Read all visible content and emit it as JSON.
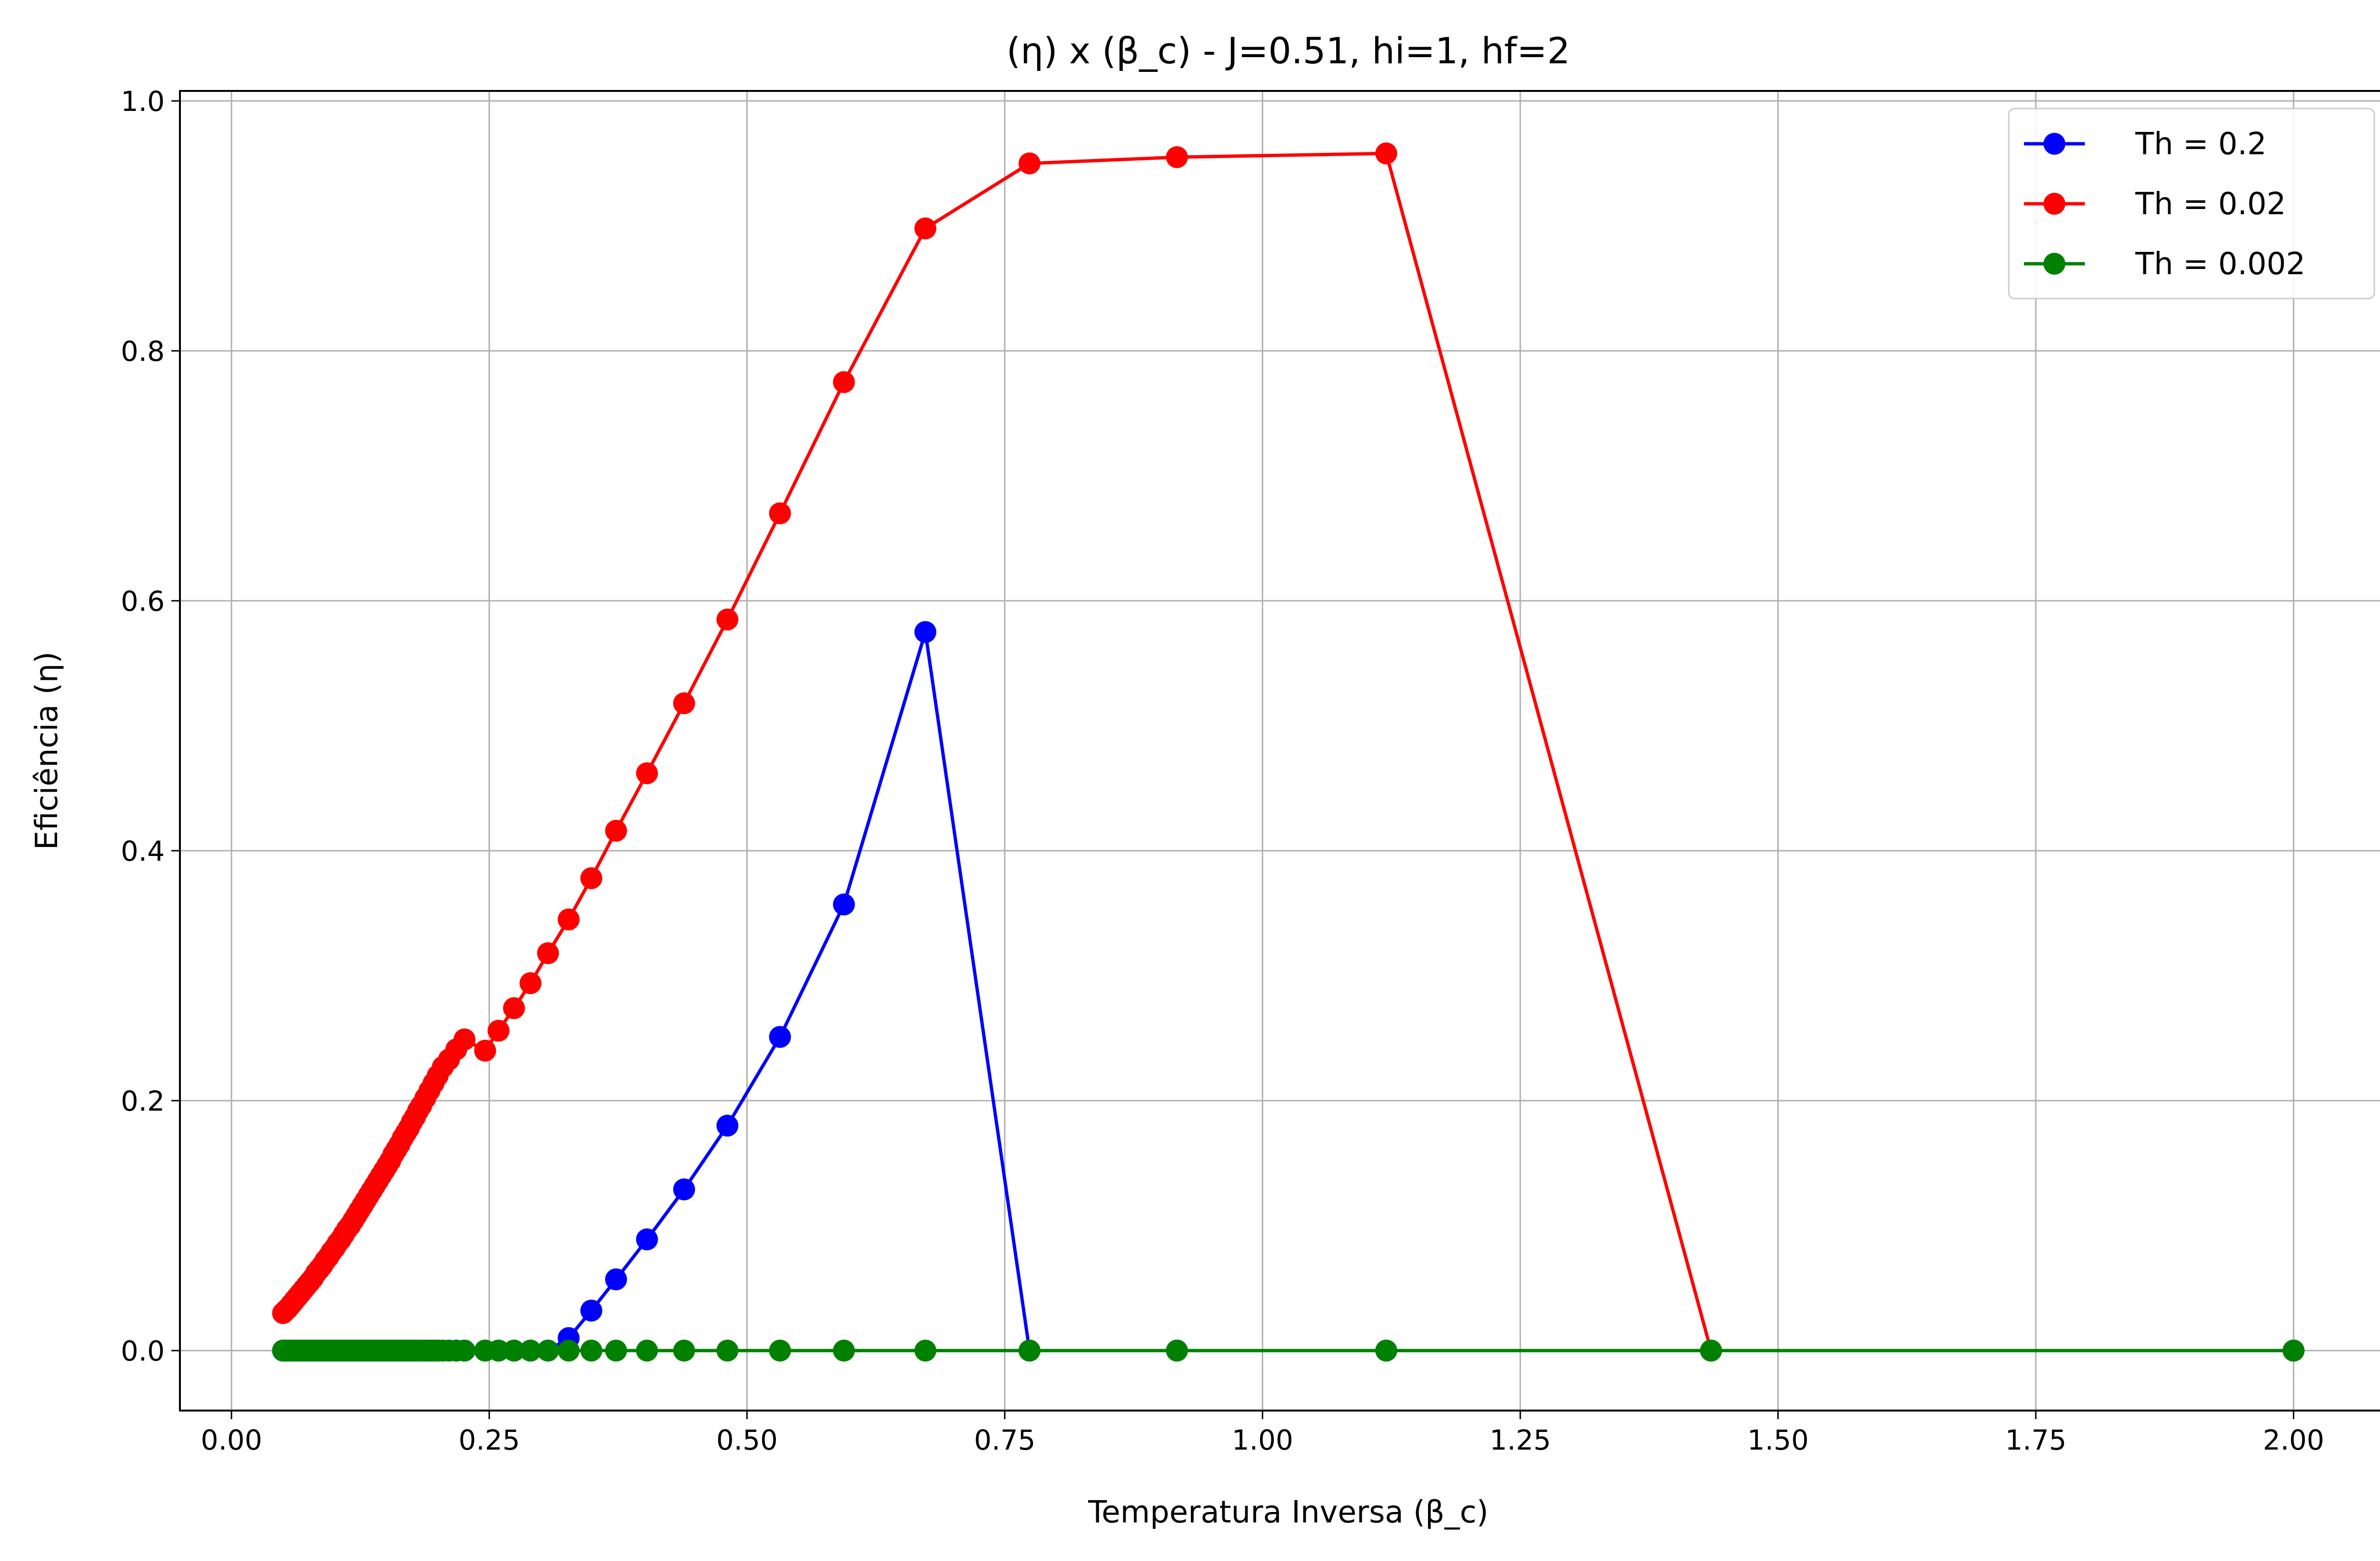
{
  "chart_data": {
    "type": "line",
    "title": "(η) x (β_c) - J=0.51, hi=1, hf=2",
    "xlabel": "Temperatura Inversa (β_c)",
    "ylabel": "Eficiência (η)",
    "xlim": [
      -0.05,
      2.1
    ],
    "ylim": [
      -0.048,
      1.008
    ],
    "xticks": [
      0.0,
      0.25,
      0.5,
      0.75,
      1.0,
      1.25,
      1.5,
      1.75,
      2.0
    ],
    "xtick_labels": [
      "0.00",
      "0.25",
      "0.50",
      "0.75",
      "1.00",
      "1.25",
      "1.50",
      "1.75",
      "2.00"
    ],
    "yticks": [
      0.0,
      0.2,
      0.4,
      0.6,
      0.8,
      1.0
    ],
    "ytick_labels": [
      "0.0",
      "0.2",
      "0.4",
      "0.6",
      "0.8",
      "1.0"
    ],
    "grid": true,
    "legend_position": "top-right",
    "x": [
      0.05,
      0.0525,
      0.055,
      0.058,
      0.061,
      0.064,
      0.067,
      0.07,
      0.073,
      0.076,
      0.079,
      0.082,
      0.085,
      0.088,
      0.091,
      0.094,
      0.097,
      0.1,
      0.103,
      0.106,
      0.109,
      0.112,
      0.115,
      0.118,
      0.121,
      0.124,
      0.127,
      0.13,
      0.133,
      0.136,
      0.139,
      0.142,
      0.145,
      0.148,
      0.151,
      0.154,
      0.157,
      0.16,
      0.163,
      0.166,
      0.169,
      0.172,
      0.175,
      0.178,
      0.181,
      0.184,
      0.188,
      0.192,
      0.196,
      0.2,
      0.205,
      0.211,
      0.218,
      0.226,
      0.246,
      0.259,
      0.274,
      0.29,
      0.307,
      0.327,
      0.349,
      0.373,
      0.403,
      0.439,
      0.481,
      0.532,
      0.594,
      0.673,
      0.774,
      0.917,
      1.12,
      1.435,
      2.0
    ],
    "series": [
      {
        "name": "Th = 0.2",
        "color": "#0000ff",
        "values": [
          0,
          0,
          0,
          0,
          0,
          0,
          0,
          0,
          0,
          0,
          0,
          0,
          0,
          0,
          0,
          0,
          0,
          0,
          0,
          0,
          0,
          0,
          0,
          0,
          0,
          0,
          0,
          0,
          0,
          0,
          0,
          0,
          0,
          0,
          0,
          0,
          0,
          0,
          0,
          0,
          0,
          0,
          0,
          0,
          0,
          0,
          0,
          0,
          0,
          0,
          0,
          0,
          0,
          0,
          0,
          0,
          0,
          0,
          0,
          0.01,
          0.032,
          0.057,
          0.089,
          0.129,
          0.18,
          0.251,
          0.357,
          0.575,
          0,
          0,
          0,
          0,
          0
        ]
      },
      {
        "name": "Th = 0.02",
        "color": "#ff0000",
        "values": [
          0.03,
          0.032,
          0.034,
          0.037,
          0.04,
          0.043,
          0.046,
          0.049,
          0.052,
          0.055,
          0.058,
          0.062,
          0.065,
          0.068,
          0.072,
          0.075,
          0.079,
          0.082,
          0.086,
          0.089,
          0.093,
          0.097,
          0.1,
          0.104,
          0.108,
          0.112,
          0.116,
          0.12,
          0.124,
          0.128,
          0.132,
          0.136,
          0.14,
          0.144,
          0.148,
          0.152,
          0.157,
          0.161,
          0.165,
          0.17,
          0.174,
          0.178,
          0.183,
          0.187,
          0.192,
          0.196,
          0.202,
          0.208,
          0.214,
          0.22,
          0.227,
          0.233,
          0.241,
          0.249,
          0.24,
          0.256,
          0.274,
          0.294,
          0.318,
          0.345,
          0.378,
          0.416,
          0.462,
          0.518,
          0.585,
          0.67,
          0.775,
          0.898,
          0.95,
          0.955,
          0.958,
          0,
          0
        ]
      },
      {
        "name": "Th = 0.002",
        "color": "#008000",
        "values": [
          0,
          0,
          0,
          0,
          0,
          0,
          0,
          0,
          0,
          0,
          0,
          0,
          0,
          0,
          0,
          0,
          0,
          0,
          0,
          0,
          0,
          0,
          0,
          0,
          0,
          0,
          0,
          0,
          0,
          0,
          0,
          0,
          0,
          0,
          0,
          0,
          0,
          0,
          0,
          0,
          0,
          0,
          0,
          0,
          0,
          0,
          0,
          0,
          0,
          0,
          0,
          0,
          0,
          0,
          0,
          0,
          0,
          0,
          0,
          0,
          0,
          0,
          0,
          0,
          0,
          0,
          0,
          0,
          0,
          0,
          0,
          0,
          0
        ]
      }
    ]
  }
}
